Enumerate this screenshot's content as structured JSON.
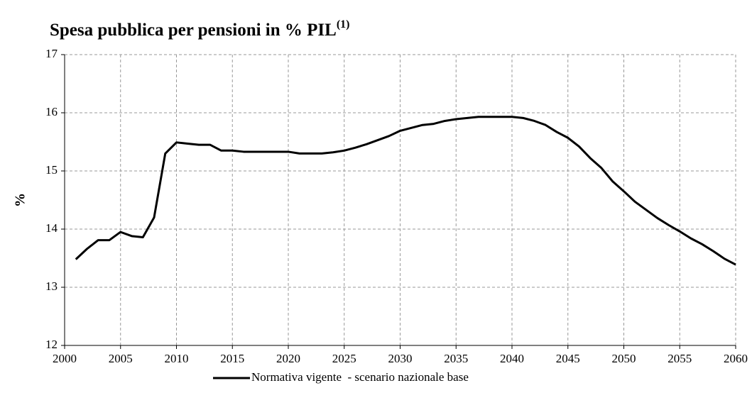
{
  "chart_data": {
    "type": "line",
    "title": "Spesa pubblica per pensioni in % PIL",
    "title_superscript": "(1)",
    "y_label": "%",
    "x": [
      2001,
      2002,
      2003,
      2004,
      2005,
      2006,
      2007,
      2008,
      2009,
      2010,
      2011,
      2012,
      2013,
      2014,
      2015,
      2016,
      2017,
      2018,
      2019,
      2020,
      2021,
      2022,
      2023,
      2024,
      2025,
      2026,
      2027,
      2028,
      2029,
      2030,
      2031,
      2032,
      2033,
      2034,
      2035,
      2036,
      2037,
      2038,
      2039,
      2040,
      2041,
      2042,
      2043,
      2044,
      2045,
      2046,
      2047,
      2048,
      2049,
      2050,
      2051,
      2052,
      2053,
      2054,
      2055,
      2056,
      2057,
      2058,
      2059,
      2060
    ],
    "series": [
      {
        "name": "Normativa vigente  - scenario nazionale base",
        "color": "#000000",
        "values": [
          13.48,
          13.66,
          13.81,
          13.81,
          13.95,
          13.88,
          13.86,
          14.2,
          15.3,
          15.49,
          15.47,
          15.45,
          15.45,
          15.35,
          15.35,
          15.33,
          15.33,
          15.33,
          15.33,
          15.33,
          15.3,
          15.3,
          15.3,
          15.32,
          15.35,
          15.4,
          15.46,
          15.53,
          15.6,
          15.69,
          15.74,
          15.79,
          15.81,
          15.86,
          15.89,
          15.91,
          15.93,
          15.93,
          15.93,
          15.93,
          15.91,
          15.86,
          15.79,
          15.67,
          15.57,
          15.42,
          15.22,
          15.05,
          14.82,
          14.65,
          14.47,
          14.33,
          14.19,
          14.07,
          13.96,
          13.84,
          13.74,
          13.62,
          13.49,
          13.39
        ]
      }
    ],
    "xlim": [
      2000,
      2060
    ],
    "xticks": [
      2000,
      2005,
      2010,
      2015,
      2020,
      2025,
      2030,
      2035,
      2040,
      2045,
      2050,
      2055,
      2060
    ],
    "ylim": [
      12,
      17
    ],
    "yticks": [
      12,
      13,
      14,
      15,
      16,
      17
    ],
    "grid": true,
    "legend": "bottom"
  }
}
